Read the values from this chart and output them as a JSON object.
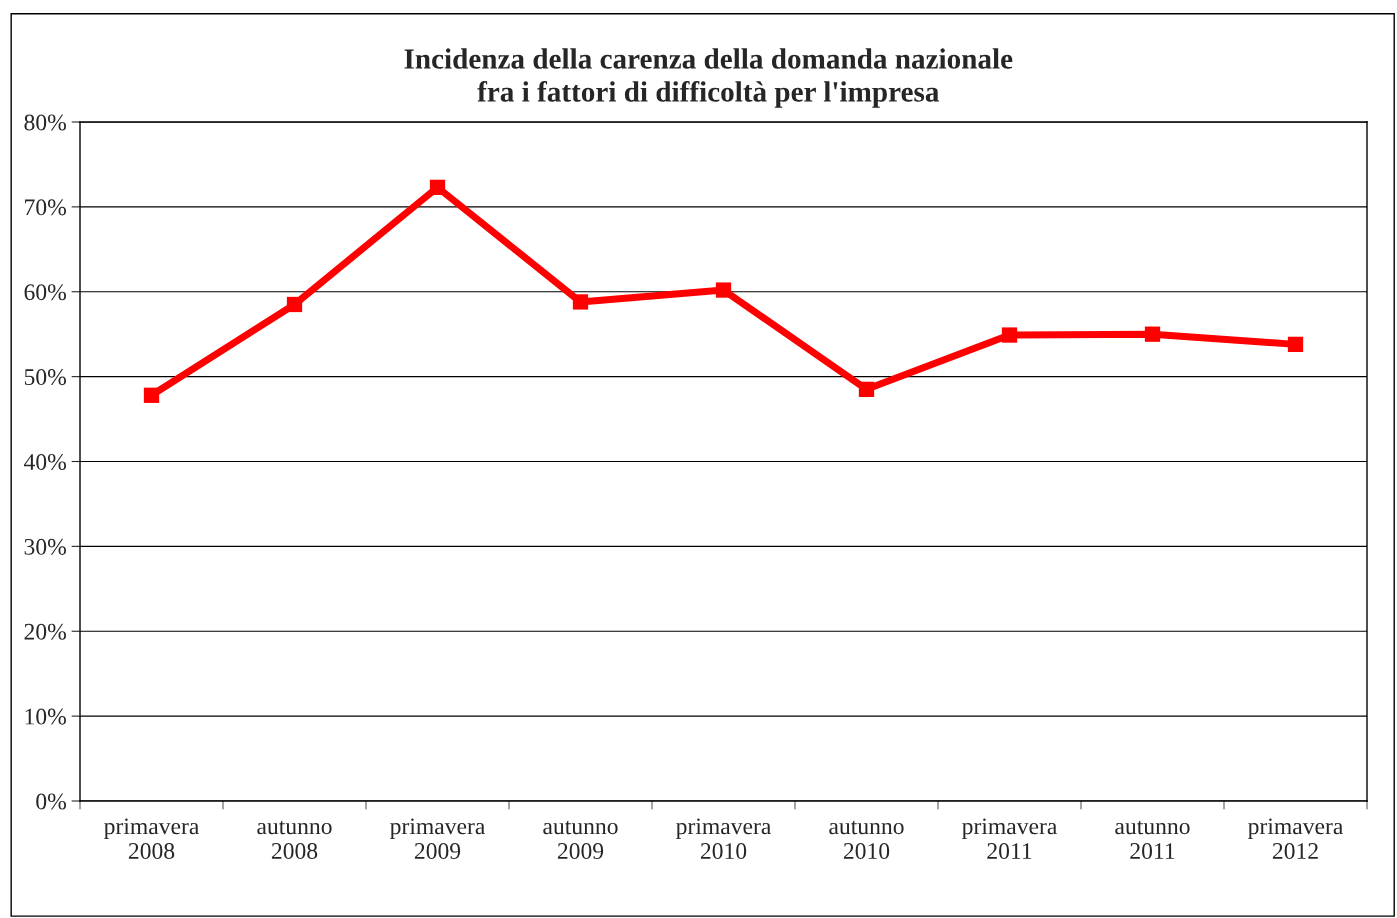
{
  "chart_data": {
    "type": "line",
    "title": "Incidenza della carenza della domanda nazionale\nfra i fattori di difficoltà per l'impresa",
    "categories": [
      "primavera\n2008",
      "autunno\n2008",
      "primavera\n2009",
      "autunno\n2009",
      "primavera\n2010",
      "autunno\n2010",
      "primavera\n2011",
      "autunno\n2011",
      "primavera\n2012"
    ],
    "series": [
      {
        "color": "#ff0000",
        "values": [
          47.8,
          58.5,
          72.3,
          58.8,
          60.2,
          48.5,
          54.9,
          55.0,
          53.8
        ]
      }
    ],
    "ylim": [
      0,
      80
    ],
    "yticks": [
      {
        "value": 0,
        "label": "0%"
      },
      {
        "value": 10,
        "label": "10%"
      },
      {
        "value": 20,
        "label": "20%"
      },
      {
        "value": 30,
        "label": "30%"
      },
      {
        "value": 40,
        "label": "40%"
      },
      {
        "value": 50,
        "label": "50%"
      },
      {
        "value": 60,
        "label": "60%"
      },
      {
        "value": 70,
        "label": "70%"
      },
      {
        "value": 80,
        "label": "80%"
      }
    ],
    "grid": "y",
    "marker": "square",
    "line_style": "solid",
    "legend": false
  }
}
